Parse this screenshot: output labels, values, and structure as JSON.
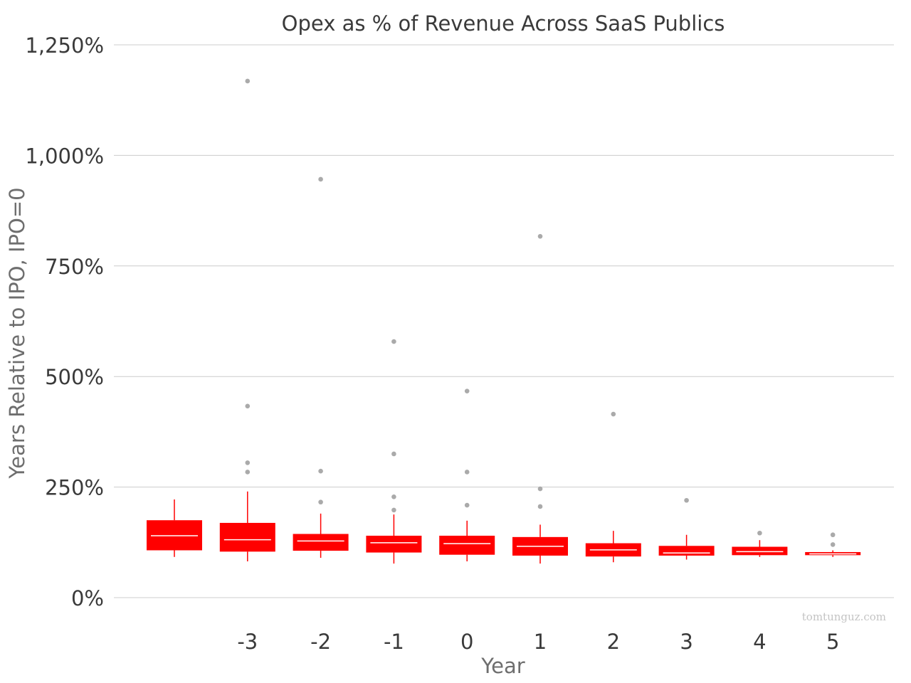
{
  "chart_data": {
    "type": "box",
    "title": "Opex as % of Revenue Across SaaS Publics",
    "xlabel": "Year",
    "ylabel": "Years Relative to IPO, IPO=0",
    "x_tick_labels": [
      "",
      "-3",
      "-2",
      "-1",
      "0",
      "1",
      "2",
      "3",
      "4",
      "5"
    ],
    "y_ticks": [
      0,
      250,
      500,
      750,
      1000,
      1250
    ],
    "y_tick_labels": [
      "0%",
      "250%",
      "500%",
      "750%",
      "1,000%",
      "1,250%"
    ],
    "ylim": [
      0,
      1250
    ],
    "grid": "horizontal",
    "colors": {
      "box": "#ff0000",
      "median": "#ffffff",
      "outlier": "#aaaaaa",
      "grid": "#cccccc",
      "text": "#3a3a3a"
    },
    "units": "%",
    "boxes": [
      {
        "category": "",
        "whisker_low": 92,
        "q1": 107,
        "median": 140,
        "q3": 175,
        "whisker_high": 222,
        "outliers": []
      },
      {
        "category": "-3",
        "whisker_low": 82,
        "q1": 104,
        "median": 131,
        "q3": 169,
        "whisker_high": 240,
        "outliers": [
          1168,
          433,
          305,
          284
        ]
      },
      {
        "category": "-2",
        "whisker_low": 90,
        "q1": 106,
        "median": 128,
        "q3": 144,
        "whisker_high": 190,
        "outliers": [
          946,
          286,
          216
        ]
      },
      {
        "category": "-1",
        "whisker_low": 77,
        "q1": 102,
        "median": 124,
        "q3": 140,
        "whisker_high": 188,
        "outliers": [
          579,
          325,
          228,
          198
        ]
      },
      {
        "category": "0",
        "whisker_low": 82,
        "q1": 97,
        "median": 122,
        "q3": 140,
        "whisker_high": 174,
        "outliers": [
          467,
          284,
          209
        ]
      },
      {
        "category": "1",
        "whisker_low": 77,
        "q1": 95,
        "median": 116,
        "q3": 137,
        "whisker_high": 165,
        "outliers": [
          817,
          246,
          206
        ]
      },
      {
        "category": "2",
        "whisker_low": 80,
        "q1": 93,
        "median": 108,
        "q3": 123,
        "whisker_high": 151,
        "outliers": [
          415
        ]
      },
      {
        "category": "3",
        "whisker_low": 86,
        "q1": 95,
        "median": 101,
        "q3": 117,
        "whisker_high": 142,
        "outliers": [
          220
        ]
      },
      {
        "category": "4",
        "whisker_low": 92,
        "q1": 96,
        "median": 104,
        "q3": 115,
        "whisker_high": 130,
        "outliers": [
          146
        ]
      },
      {
        "category": "5",
        "whisker_low": 92,
        "q1": 96,
        "median": 99,
        "q3": 103,
        "whisker_high": 107,
        "outliers": [
          142,
          120
        ]
      }
    ],
    "watermark": "tomtunguz.com"
  }
}
